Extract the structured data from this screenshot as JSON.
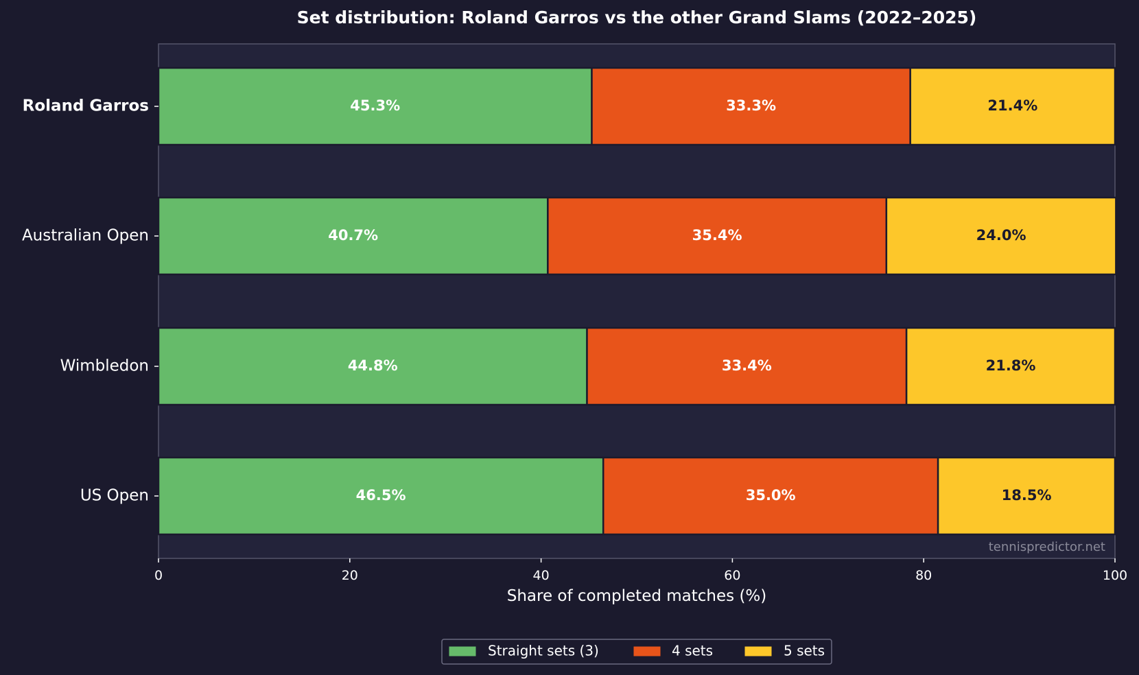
{
  "chart_data": {
    "type": "bar",
    "orientation": "horizontal",
    "stacked": true,
    "title": "Set distribution: Roland Garros vs the other Grand Slams (2022–2025)",
    "xlabel": "Share of completed matches (%)",
    "ylabel": "",
    "xlim": [
      0,
      100
    ],
    "xticks": [
      "0",
      "20",
      "40",
      "60",
      "80",
      "100"
    ],
    "categories": [
      "Roland Garros",
      "Australian Open",
      "Wimbledon",
      "US Open"
    ],
    "highlight_category": "Roland Garros",
    "series": [
      {
        "name": "Straight sets (3)",
        "color": "#66bb6a",
        "label_color": "#ffffff",
        "values": [
          45.3,
          40.7,
          44.8,
          46.5
        ],
        "labels": [
          "45.3%",
          "40.7%",
          "44.8%",
          "46.5%"
        ]
      },
      {
        "name": "4 sets",
        "color": "#e8541a",
        "label_color": "#ffffff",
        "values": [
          33.3,
          35.4,
          33.4,
          35.0
        ],
        "labels": [
          "33.3%",
          "35.4%",
          "33.4%",
          "35.0%"
        ]
      },
      {
        "name": "5 sets",
        "color": "#fdc72a",
        "label_color": "#1b1a2d",
        "values": [
          21.4,
          24.0,
          21.8,
          18.5
        ],
        "labels": [
          "21.4%",
          "24.0%",
          "21.8%",
          "18.5%"
        ]
      }
    ],
    "legend_position": "bottom-center",
    "grid": false,
    "watermark": "tennispredictor.net",
    "colors": {
      "background": "#1b1a2d",
      "plot_background": "#23233a",
      "axis": "#55556a"
    }
  }
}
